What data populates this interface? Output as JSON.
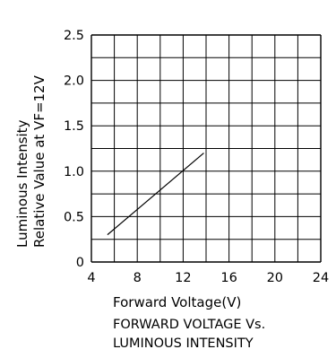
{
  "chart_data": {
    "type": "line",
    "xlabel": "Forward Voltage(V)",
    "ylabel": [
      "Luminous Intensity",
      "Relative Value at VF=12V"
    ],
    "caption": [
      "FORWARD VOLTAGE Vs.",
      "LUMINOUS INTENSITY"
    ],
    "xlim": [
      4,
      24
    ],
    "ylim": [
      0,
      2.5
    ],
    "x_ticks": [
      "4",
      "8",
      "12",
      "16",
      "20",
      "24"
    ],
    "y_ticks": [
      "0",
      "0.5",
      "1.0",
      "1.5",
      "2.0",
      "2.5"
    ],
    "x_minor_step": 2,
    "y_minor_step": 0.25,
    "grid": true,
    "series": [
      {
        "x": [
          5.4,
          13.8
        ],
        "y": [
          0.3,
          1.2
        ]
      }
    ]
  }
}
